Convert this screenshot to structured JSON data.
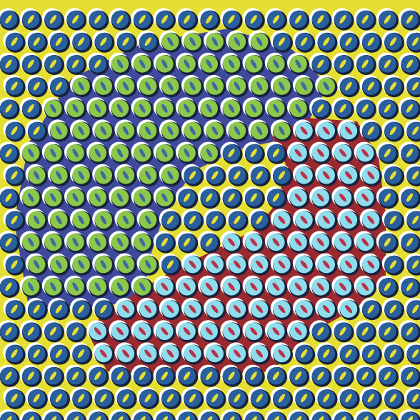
{
  "colors": {
    "background": "#e5df33",
    "blue_region": "#3f4a9c",
    "red_region": "#9a2a2f",
    "outline_light": "#ffffff",
    "outline_dark": "#17223d",
    "disc_default": "#2a5f9e",
    "dash_default": "#e5df33",
    "disc_blue_region": "#8cc84b",
    "dash_blue_region": "#3f6a9e",
    "disc_red_region": "#8fdcec",
    "dash_red_region": "#b8324a"
  },
  "regions": [
    {
      "name": "blue-polygon-region",
      "kind": "blue"
    },
    {
      "name": "red-polygon-region",
      "kind": "red"
    }
  ],
  "pattern": {
    "type": "peripheral-drift-illusion",
    "elements": "rings-with-dashes"
  }
}
